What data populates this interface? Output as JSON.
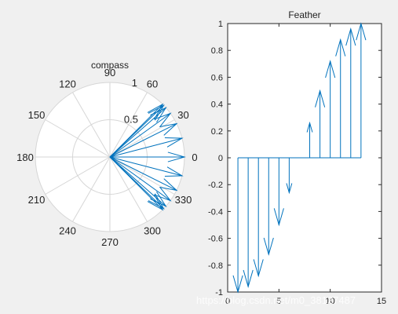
{
  "window": {
    "background": "#f0f0f0"
  },
  "watermark": "https://blog.csdn.net/m0_38127487",
  "chart_data": [
    {
      "type": "compass",
      "title": "compass",
      "rlim": [
        0,
        1
      ],
      "radial_tick_labels": [
        "0.5",
        "1"
      ],
      "angle_tick_labels": [
        "0",
        "30",
        "60",
        "90",
        "120",
        "150",
        "180",
        "210",
        "240",
        "270",
        "300",
        "330"
      ],
      "grid": true,
      "color": "#0072bd",
      "vectors": {
        "u": [
          1,
          1,
          1,
          1,
          1,
          1,
          1,
          1,
          1,
          1,
          1,
          1,
          1
        ],
        "v": [
          -1,
          -0.96,
          -0.88,
          -0.72,
          -0.5,
          -0.26,
          0,
          0.26,
          0.5,
          0.72,
          0.88,
          0.96,
          1
        ]
      }
    },
    {
      "type": "feather",
      "title": "Feather",
      "xlim": [
        0,
        15
      ],
      "ylim": [
        -1,
        1
      ],
      "x_tick_labels": [
        "0",
        "5",
        "10",
        "15"
      ],
      "y_tick_labels": [
        "-1",
        "-0.8",
        "-0.6",
        "-0.4",
        "-0.2",
        "0",
        "0.2",
        "0.4",
        "0.6",
        "0.8",
        "1"
      ],
      "color": "#0072bd",
      "u": [
        0,
        0,
        0,
        0,
        0,
        0,
        0,
        0,
        0,
        0,
        0,
        0,
        0
      ],
      "v": [
        -1,
        -0.96,
        -0.88,
        -0.72,
        -0.5,
        -0.26,
        0,
        0.26,
        0.5,
        0.72,
        0.88,
        0.96,
        1
      ]
    }
  ]
}
